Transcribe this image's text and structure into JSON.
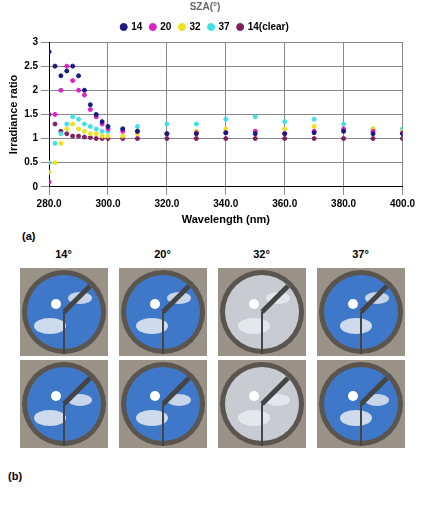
{
  "chart_data": {
    "type": "scatter",
    "legend_title": "SZA(°)",
    "x_label": "Wavelength (nm)",
    "y_label": "Irradiance ratio",
    "x": [
      280,
      282,
      284,
      286,
      288,
      290,
      292,
      294,
      296,
      298,
      300,
      305,
      310,
      320,
      330,
      340,
      350,
      360,
      370,
      380,
      390,
      400
    ],
    "series": [
      {
        "name": "14",
        "color": "#1a1a80",
        "values": [
          2.8,
          2.5,
          2.3,
          2.4,
          2.5,
          2.3,
          2.0,
          1.7,
          1.5,
          1.35,
          1.25,
          1.2,
          1.15,
          1.1,
          1.1,
          1.12,
          1.1,
          1.1,
          1.12,
          1.15,
          1.1,
          1.1
        ]
      },
      {
        "name": "20",
        "color": "#e020c8",
        "values": [
          0.1,
          1.5,
          2.0,
          2.5,
          2.2,
          2.0,
          1.9,
          1.6,
          1.45,
          1.3,
          1.2,
          1.15,
          1.15,
          1.1,
          1.12,
          1.12,
          1.15,
          1.1,
          1.15,
          1.2,
          1.15,
          1.12
        ]
      },
      {
        "name": "32",
        "color": "#f0e020",
        "values": [
          0.3,
          0.5,
          0.9,
          1.2,
          1.3,
          1.2,
          1.15,
          1.1,
          1.1,
          1.05,
          1.05,
          1.05,
          1.1,
          1.1,
          1.15,
          1.2,
          1.15,
          1.2,
          1.25,
          1.15,
          1.2,
          1.15
        ]
      },
      {
        "name": "37",
        "color": "#40e0e8",
        "values": [
          0.5,
          0.9,
          1.1,
          1.3,
          1.45,
          1.4,
          1.3,
          1.25,
          1.2,
          1.15,
          1.15,
          1.2,
          1.25,
          1.3,
          1.3,
          1.4,
          1.45,
          1.35,
          1.4,
          1.3,
          1.2,
          1.2
        ]
      },
      {
        "name": "14(clear)",
        "color": "#802060",
        "values": [
          1.5,
          1.3,
          1.15,
          1.1,
          1.05,
          1.05,
          1.03,
          1.02,
          1.0,
          1.0,
          1.0,
          1.0,
          1.0,
          1.0,
          1.0,
          1.0,
          1.0,
          1.0,
          1.0,
          1.0,
          1.0,
          1.0
        ]
      }
    ],
    "xlim": [
      280,
      400
    ],
    "xticks": [
      {
        "value": 280,
        "label": "280.0"
      },
      {
        "value": 300,
        "label": "300.0"
      },
      {
        "value": 320,
        "label": "320.0"
      },
      {
        "value": 340,
        "label": "340.0"
      },
      {
        "value": 360,
        "label": "360.0"
      },
      {
        "value": 380,
        "label": "380.0"
      },
      {
        "value": 400,
        "label": "400.0"
      }
    ],
    "ylim": [
      0,
      3
    ],
    "yticks": [
      0,
      0.5,
      1,
      1.5,
      2,
      2.5,
      3
    ],
    "grid": true,
    "legend": "top",
    "marker": "circle"
  },
  "panel_a_label": "(a)",
  "photos": {
    "columns": [
      "14°",
      "20°",
      "32°",
      "37°"
    ],
    "rows": 2,
    "label": "(b)"
  }
}
